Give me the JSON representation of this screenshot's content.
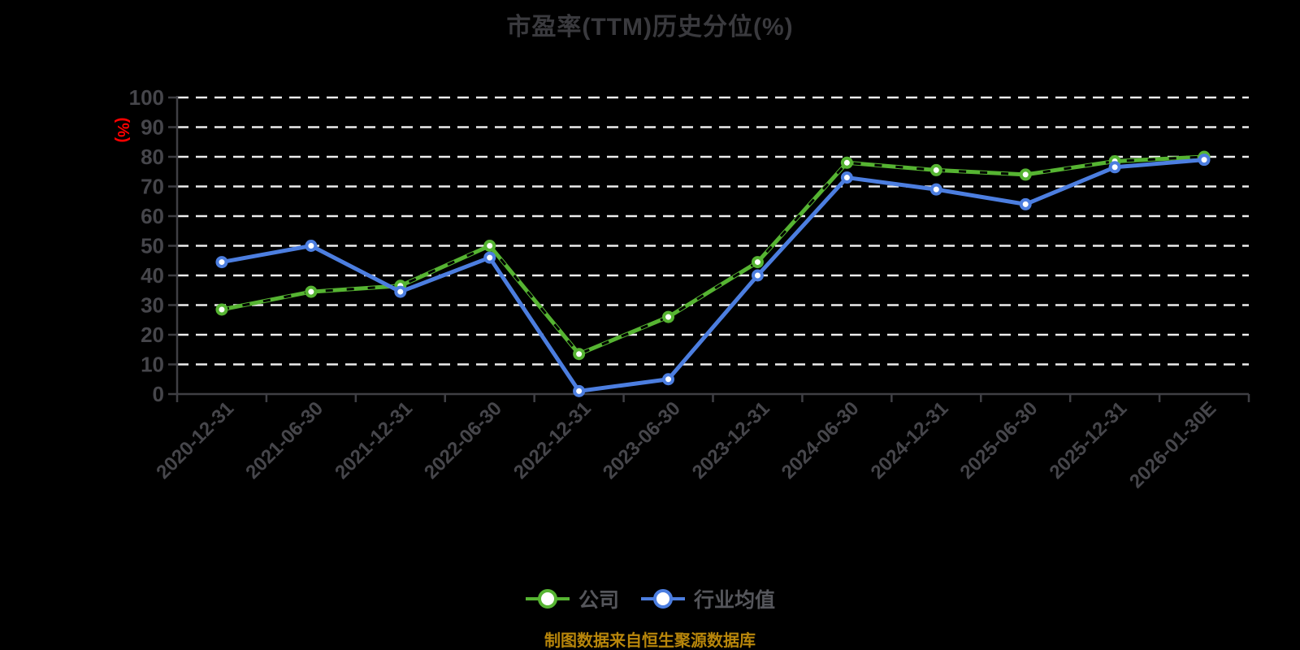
{
  "title": "市盈率(TTM)历史分位(%)",
  "y_axis_name": "(%)",
  "caption": "制图数据来自恒生聚源数据库",
  "colors": {
    "background": "#000000",
    "title": "#3A3A3E",
    "axis": "#3F3F44",
    "axis_label": "#46464B",
    "gridline": "#ECECEC",
    "y_axis_name": "#FF0000",
    "legend_text": "#55565B",
    "caption": "#B8860B",
    "marker_fill": "#FFFFFF",
    "dash_overlay": "#000000"
  },
  "chart_data": {
    "type": "line",
    "title": "市盈率(TTM)历史分位(%)",
    "ylabel": "(%)",
    "ylim": [
      0,
      100
    ],
    "ytick_step": 10,
    "grid": true,
    "legend_position": "bottom",
    "categories": [
      "2020-12-31",
      "2021-06-30",
      "2021-12-31",
      "2022-06-30",
      "2022-12-31",
      "2023-06-30",
      "2023-12-31",
      "2024-06-30",
      "2024-12-31",
      "2025-06-30",
      "2025-12-31",
      "2026-01-30E"
    ],
    "series": [
      {
        "name": "公司",
        "key": "company",
        "color": "#56B432",
        "dashed_overlay": true,
        "values": [
          28.5,
          34.5,
          36.5,
          50,
          13.5,
          26,
          44.5,
          78,
          75.5,
          74,
          78.5,
          80
        ]
      },
      {
        "name": "行业均值",
        "key": "industry-average",
        "color": "#4C7EE0",
        "dashed_overlay": false,
        "values": [
          44.5,
          50,
          34.5,
          46,
          1,
          5,
          40,
          73,
          69,
          64,
          76.5,
          79
        ]
      }
    ]
  }
}
